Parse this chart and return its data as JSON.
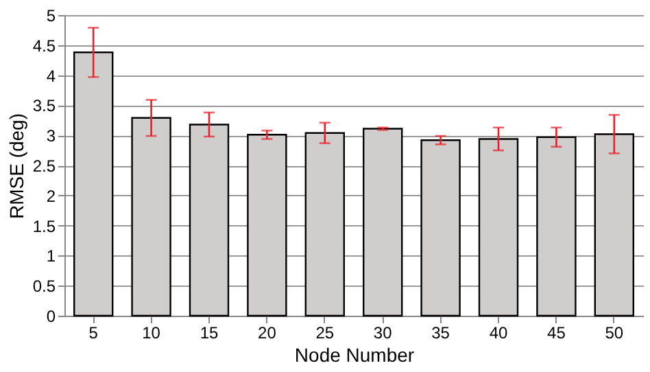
{
  "chart_data": {
    "type": "bar",
    "xlabel": "Node Number",
    "ylabel": "RMSE (deg)",
    "categories": [
      "5",
      "10",
      "15",
      "20",
      "25",
      "30",
      "35",
      "40",
      "45",
      "50"
    ],
    "values": [
      4.38,
      3.29,
      3.18,
      3.01,
      3.04,
      3.11,
      2.92,
      2.94,
      2.97,
      3.02
    ],
    "errors": [
      0.41,
      0.3,
      0.2,
      0.07,
      0.17,
      0.02,
      0.07,
      0.19,
      0.16,
      0.32
    ],
    "color": "#d0cecd",
    "ylim": [
      0,
      5
    ],
    "yticks": [
      0,
      0.5,
      1,
      1.5,
      2,
      2.5,
      3,
      3.5,
      4,
      4.5,
      5
    ],
    "grid": "y"
  }
}
